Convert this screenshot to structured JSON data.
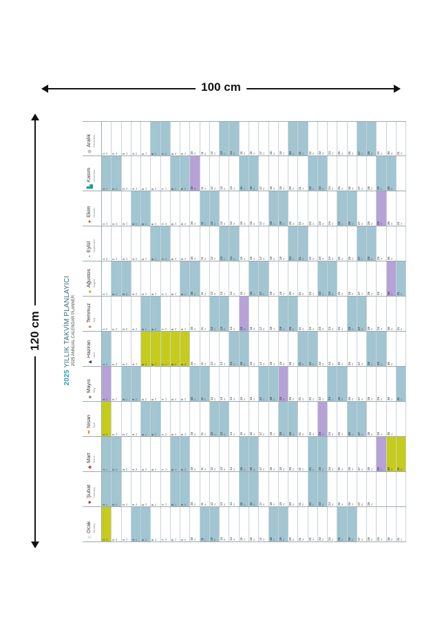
{
  "dimensions": {
    "width_label": "100 cm",
    "height_label": "120 cm"
  },
  "poster": {
    "year": "2025",
    "title_rest": "YILLIK TAKVİM PLANLAYICI",
    "subtitle": "2025 ANNUAL CALENDAR PLANNER",
    "weekdays_short": [
      "Pa",
      "Sa",
      "Ça",
      "Pe",
      "Cu",
      "Ct",
      "Pz"
    ],
    "months": [
      {
        "name": "Ocak",
        "sub": "January",
        "icon": "snowman-icon",
        "glyph": "☃",
        "color": "#888888",
        "days": 31,
        "start": 2,
        "marks": [
          {
            "d": 1,
            "t": "hol"
          }
        ]
      },
      {
        "name": "Şubat",
        "sub": "February",
        "icon": "heart-icon",
        "glyph": "♥",
        "color": "#c62828",
        "days": 28,
        "start": 5,
        "marks": []
      },
      {
        "name": "Mart",
        "sub": "March",
        "icon": "clover-icon",
        "glyph": "♣",
        "color": "#c0392b",
        "days": 31,
        "start": 5,
        "marks": [
          {
            "d": 29,
            "t": "rel"
          },
          {
            "d": 30,
            "t": "hol"
          },
          {
            "d": 31,
            "t": "hol"
          }
        ]
      },
      {
        "name": "Nisan",
        "sub": "April",
        "icon": "umbrella-icon",
        "glyph": "☂",
        "color": "#e08a1e",
        "days": 30,
        "start": 1,
        "marks": [
          {
            "d": 1,
            "t": "hol"
          },
          {
            "d": 23,
            "t": "rel"
          }
        ]
      },
      {
        "name": "Mayıs",
        "sub": "May",
        "icon": "tree-icon",
        "glyph": "♠",
        "color": "#8d6e4a",
        "days": 31,
        "start": 3,
        "marks": [
          {
            "d": 1,
            "t": "rel"
          },
          {
            "d": 19,
            "t": "rel"
          }
        ]
      },
      {
        "name": "Haziran",
        "sub": "June",
        "icon": "graduation-cap-icon",
        "glyph": "▲",
        "color": "#3b2a6b",
        "days": 30,
        "start": 6,
        "marks": [
          {
            "d": 5,
            "t": "hol"
          },
          {
            "d": 6,
            "t": "hol"
          },
          {
            "d": 7,
            "t": "hol"
          },
          {
            "d": 8,
            "t": "hol"
          },
          {
            "d": 9,
            "t": "hol"
          }
        ]
      },
      {
        "name": "Temmuz",
        "sub": "July",
        "icon": "icecream-icon",
        "glyph": "♦",
        "color": "#c2782e",
        "days": 31,
        "start": 1,
        "marks": [
          {
            "d": 15,
            "t": "rel"
          }
        ]
      },
      {
        "name": "Ağustos",
        "sub": "August",
        "icon": "sun-icon",
        "glyph": "●",
        "color": "#f4a300",
        "days": 31,
        "start": 4,
        "marks": [
          {
            "d": 30,
            "t": "rel"
          }
        ]
      },
      {
        "name": "Eylül",
        "sub": "September",
        "icon": "clock-icon",
        "glyph": "◔",
        "color": "#2b5da8",
        "days": 30,
        "start": 0,
        "marks": []
      },
      {
        "name": "Ekim",
        "sub": "October",
        "icon": "maple-leaf-icon",
        "glyph": "✦",
        "color": "#d35400",
        "days": 31,
        "start": 2,
        "marks": [
          {
            "d": 29,
            "t": "rel"
          }
        ]
      },
      {
        "name": "Kasım",
        "sub": "November",
        "icon": "boots-icon",
        "glyph": "▙",
        "color": "#1a9c8f",
        "days": 30,
        "start": 5,
        "marks": [
          {
            "d": 10,
            "t": "rel"
          }
        ]
      },
      {
        "name": "Aralık",
        "sub": "December",
        "icon": "snowflake-icon",
        "glyph": "❄",
        "color": "#9e9e9e",
        "days": 31,
        "start": 0,
        "marks": []
      }
    ]
  }
}
